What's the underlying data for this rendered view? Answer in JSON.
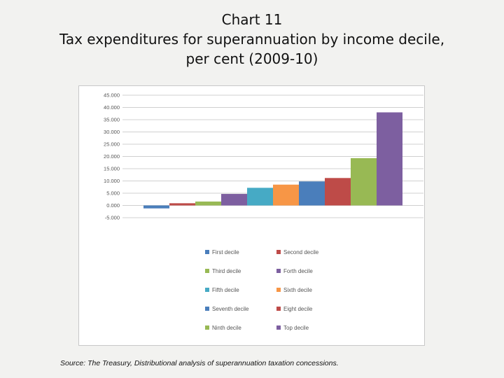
{
  "title": {
    "line1": "Chart 11",
    "line2": "Tax expenditures for superannuation by income decile,",
    "line3": "per cent (2009-10)"
  },
  "source": "Source: The Treasury, Distributional analysis of superannuation taxation concessions.",
  "chart_data": {
    "type": "bar",
    "title": "Tax expenditures for superannuation by income decile, per cent (2009-10)",
    "xlabel": "",
    "ylabel": "",
    "ylim": [
      -5,
      45
    ],
    "yticks": [
      45,
      40,
      35,
      30,
      25,
      20,
      15,
      10,
      5,
      0,
      -5
    ],
    "ytick_labels": [
      "45.000",
      "40.000",
      "35.000",
      "30.000",
      "25.000",
      "20.000",
      "15.000",
      "10.000",
      "5.000",
      "0.000",
      "-5.000"
    ],
    "grid": true,
    "legend_position": "bottom",
    "series": [
      {
        "name": "First decile",
        "value": -1.2,
        "color": "#4a7ebb"
      },
      {
        "name": "Second decile",
        "value": 0.9,
        "color": "#be4b48"
      },
      {
        "name": "Third decile",
        "value": 1.6,
        "color": "#98b954"
      },
      {
        "name": "Forth decile",
        "value": 4.7,
        "color": "#7d5fa0"
      },
      {
        "name": "Fifth decile",
        "value": 7.2,
        "color": "#46aac5"
      },
      {
        "name": "Sixth decile",
        "value": 8.5,
        "color": "#f79646"
      },
      {
        "name": "Seventh decile",
        "value": 9.8,
        "color": "#4a7ebb"
      },
      {
        "name": "Eight decile",
        "value": 11.2,
        "color": "#be4b48"
      },
      {
        "name": "Ninth decile",
        "value": 19.3,
        "color": "#98b954"
      },
      {
        "name": "Top decile",
        "value": 38.0,
        "color": "#7d5fa0"
      }
    ]
  }
}
